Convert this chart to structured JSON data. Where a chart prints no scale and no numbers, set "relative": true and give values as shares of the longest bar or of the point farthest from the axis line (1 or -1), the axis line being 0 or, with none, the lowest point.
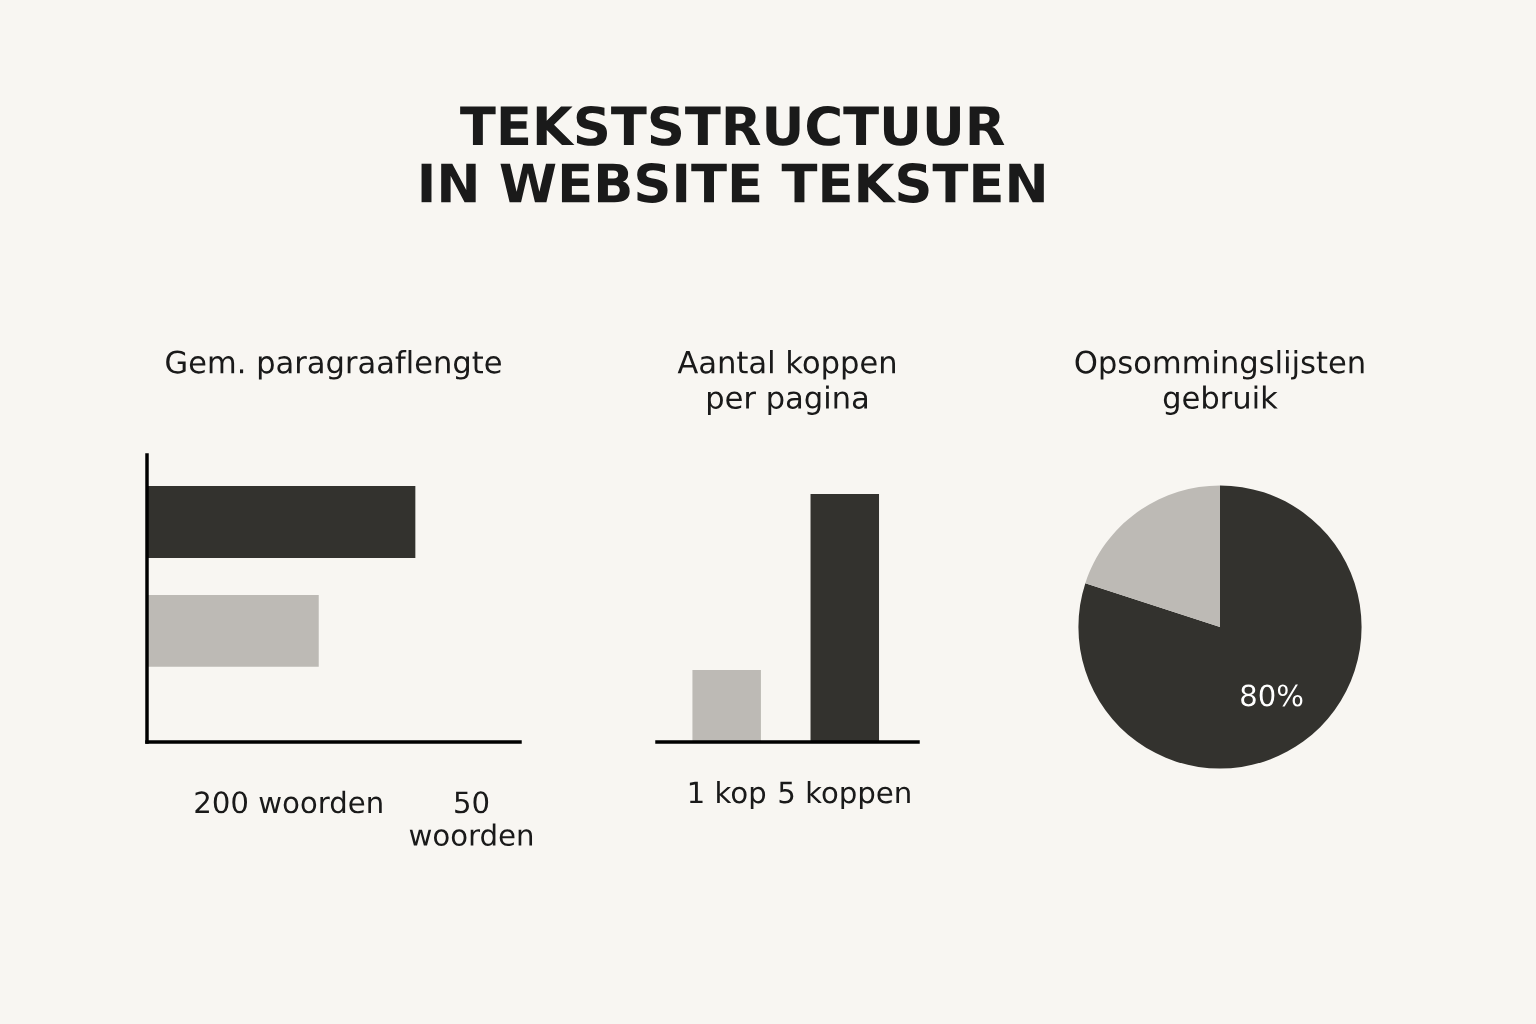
{
  "chart_data": [
    {
      "type": "bar",
      "title": "TEKSTSTRUCTUUR\nIN WEBSITE TEKSTEN",
      "subtitle": "Gem. paragraaflengte",
      "orientation": "horizontal",
      "relative": true,
      "categories": [
        null,
        null
      ],
      "values": [
        1,
        0.64
      ],
      "colors": [
        "#33322e",
        "#bdbab5"
      ],
      "annotations": [
        "200 woorden",
        "50\nwoorden"
      ]
    },
    {
      "type": "bar",
      "subtitle": "Aantal koppen\nper pagina",
      "relative": true,
      "categories": [
        "1 kop",
        "5 koppen"
      ],
      "values": [
        0.29,
        1
      ],
      "colors": [
        "#bdbab5",
        "#33322e"
      ]
    },
    {
      "type": "pie",
      "subtitle": "Opsommingslijsten\ngebruik",
      "categories": [
        null,
        null
      ],
      "values": [
        80,
        20
      ],
      "colors": [
        "#33322e",
        "#bdbab5"
      ],
      "value_labels": [
        "80%",
        null
      ]
    }
  ]
}
